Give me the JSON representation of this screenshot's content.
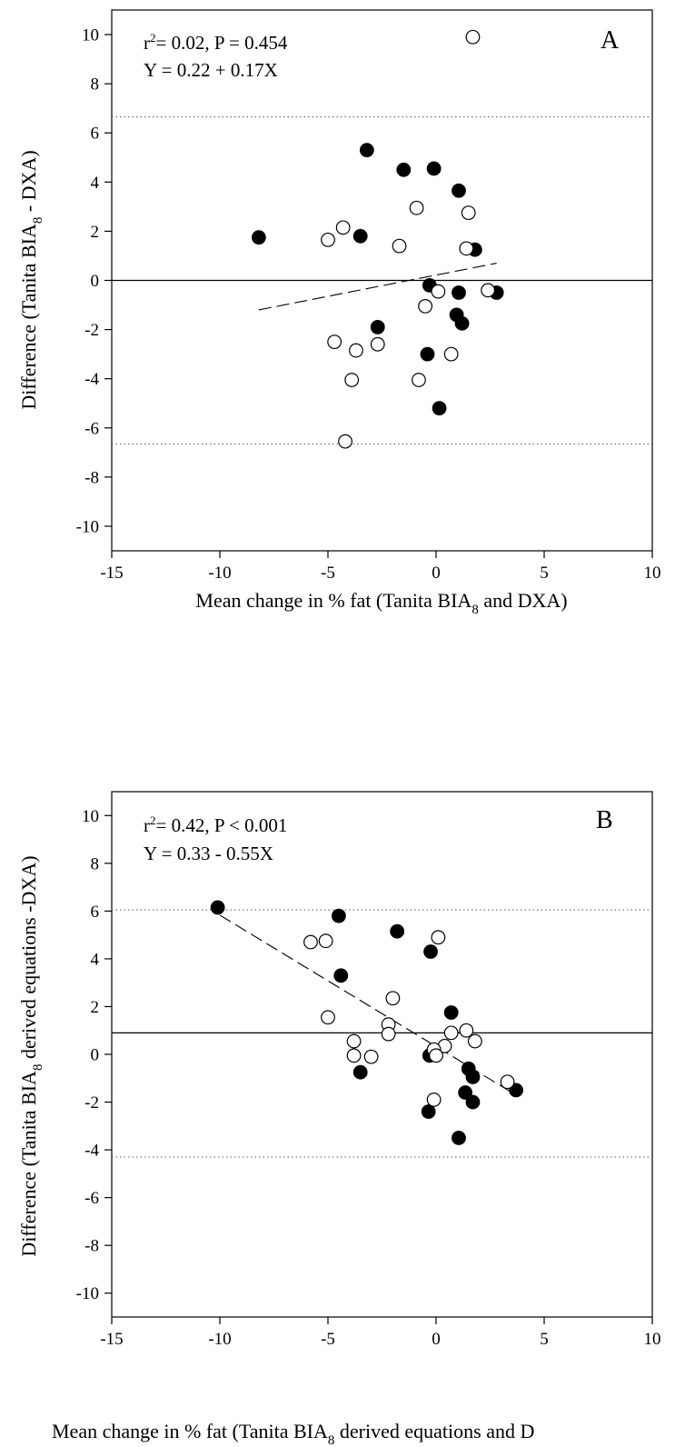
{
  "chart_data": [
    {
      "type": "scatter",
      "panel_label": "A",
      "stats_line": "r² = 0.02, P = 0.454",
      "equation": "Y = 0.22 + 0.17X",
      "ylabel_parts": [
        "Difference (Tanita BIA",
        "8",
        " - DXA)"
      ],
      "xlabel_parts": [
        "Mean change in % fat (Tanita BIA",
        "8",
        " and DXA)"
      ],
      "xlim": [
        -15,
        10
      ],
      "ylim": [
        -11,
        11
      ],
      "xticks": [
        -15,
        -10,
        -5,
        0,
        5,
        10
      ],
      "yticks": [
        -10,
        -8,
        -6,
        -4,
        -2,
        0,
        2,
        4,
        6,
        8,
        10
      ],
      "grid": false,
      "mean_line": 0.0,
      "limits_of_agreement": [
        6.65,
        -6.65
      ],
      "regression": {
        "x": [
          -8.2,
          2.8
        ],
        "y": [
          -1.2,
          0.7
        ]
      },
      "series": [
        {
          "marker": "filled",
          "points": [
            [
              -8.2,
              1.75
            ],
            [
              -3.2,
              5.3
            ],
            [
              -3.5,
              1.8
            ],
            [
              -1.5,
              4.5
            ],
            [
              -0.1,
              4.55
            ],
            [
              1.05,
              3.65
            ],
            [
              1.8,
              1.25
            ],
            [
              -0.3,
              -0.2
            ],
            [
              1.05,
              -0.5
            ],
            [
              2.8,
              -0.5
            ],
            [
              0.95,
              -1.4
            ],
            [
              1.2,
              -1.75
            ],
            [
              -2.7,
              -1.9
            ],
            [
              -0.4,
              -3.0
            ],
            [
              0.15,
              -5.2
            ]
          ]
        },
        {
          "marker": "open",
          "points": [
            [
              1.7,
              9.9
            ],
            [
              -0.9,
              2.95
            ],
            [
              1.5,
              2.75
            ],
            [
              -4.3,
              2.15
            ],
            [
              -5.0,
              1.65
            ],
            [
              -1.7,
              1.4
            ],
            [
              1.4,
              1.3
            ],
            [
              2.4,
              -0.4
            ],
            [
              0.1,
              -0.45
            ],
            [
              -0.5,
              -1.05
            ],
            [
              -4.7,
              -2.5
            ],
            [
              -3.7,
              -2.85
            ],
            [
              -2.7,
              -2.6
            ],
            [
              0.7,
              -3.0
            ],
            [
              -3.9,
              -4.05
            ],
            [
              -0.8,
              -4.05
            ],
            [
              -4.2,
              -6.55
            ]
          ]
        }
      ]
    },
    {
      "type": "scatter",
      "panel_label": "B",
      "stats_line": "r²= 0.42, P < 0.001",
      "equation": "Y = 0.33 - 0.55X",
      "ylabel_parts": [
        "Difference (Tanita BIA",
        "8",
        "  derived equations -DXA)"
      ],
      "xlabel_parts": [
        "Mean change in % fat (Tanita BIA",
        "8",
        " derived equations and D"
      ],
      "xlim": [
        -15,
        10
      ],
      "ylim": [
        -11,
        11
      ],
      "xticks": [
        -15,
        -10,
        -5,
        0,
        5,
        10
      ],
      "yticks": [
        -10,
        -8,
        -6,
        -4,
        -2,
        0,
        2,
        4,
        6,
        8,
        10
      ],
      "grid": false,
      "mean_line": 0.9,
      "limits_of_agreement": [
        6.05,
        -4.3
      ],
      "regression": {
        "x": [
          -10.0,
          3.6
        ],
        "y": [
          5.83,
          -1.65
        ]
      },
      "series": [
        {
          "marker": "filled",
          "points": [
            [
              -10.1,
              6.15
            ],
            [
              -4.5,
              5.8
            ],
            [
              -1.8,
              5.15
            ],
            [
              -0.25,
              4.3
            ],
            [
              -4.4,
              3.3
            ],
            [
              0.7,
              1.75
            ],
            [
              -0.3,
              -0.05
            ],
            [
              1.5,
              -0.6
            ],
            [
              1.7,
              -0.95
            ],
            [
              -3.5,
              -0.75
            ],
            [
              3.7,
              -1.5
            ],
            [
              1.35,
              -1.6
            ],
            [
              1.7,
              -2.0
            ],
            [
              -0.35,
              -2.4
            ],
            [
              1.05,
              -3.5
            ]
          ]
        },
        {
          "marker": "open",
          "points": [
            [
              -5.8,
              4.7
            ],
            [
              -5.1,
              4.75
            ],
            [
              0.1,
              4.9
            ],
            [
              -2.0,
              2.35
            ],
            [
              -5.0,
              1.55
            ],
            [
              -2.2,
              1.25
            ],
            [
              -2.2,
              0.85
            ],
            [
              -3.8,
              0.55
            ],
            [
              0.7,
              0.9
            ],
            [
              1.4,
              1.0
            ],
            [
              1.8,
              0.55
            ],
            [
              0.4,
              0.35
            ],
            [
              -0.1,
              0.2
            ],
            [
              0.0,
              -0.05
            ],
            [
              -3.8,
              -0.05
            ],
            [
              -3.0,
              -0.1
            ],
            [
              3.3,
              -1.15
            ],
            [
              -0.1,
              -1.9
            ]
          ]
        }
      ]
    }
  ]
}
